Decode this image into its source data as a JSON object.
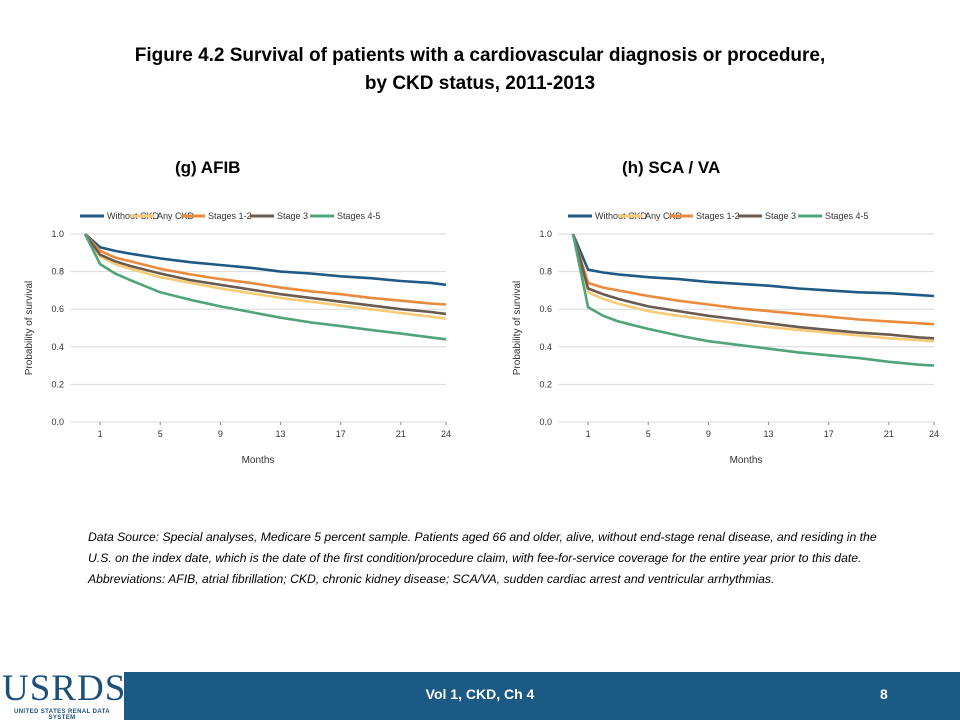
{
  "slide": {
    "title_line1": "Figure 4.2  Survival of patients with a cardiovascular diagnosis or procedure,",
    "title_line2": "by CKD status, 2011-2013",
    "footnote": "Data Source: Special analyses, Medicare 5 percent sample. Patients aged 66 and older, alive, without end-stage renal disease, and residing in the U.S. on the index date, which is the date of the first condition/procedure claim, with fee-for-service coverage for the entire year prior to this date. Abbreviations: AFIB, atrial fibrillation; CKD, chronic kidney disease; SCA/VA, sudden cardiac arrest and ventricular arrhythmias.",
    "footer_label": "Vol 1, CKD, Ch 4",
    "page_number": "8",
    "logo_text": "USRDS",
    "logo_subtext": "UNITED STATES RENAL DATA SYSTEM"
  },
  "colors": {
    "Without CKD": "#1f5a86",
    "Any CKD": "#f6cc76",
    "Stages 1-2": "#ea8a3c",
    "Stage 3": "#6b5a50",
    "Stages 4-5": "#4fa47a",
    "bar": "#1b5a84"
  },
  "chart_data": [
    {
      "type": "line",
      "panel_title": "(g) AFIB",
      "xlabel": "Months",
      "ylabel": "Probability of survival",
      "xlim": [
        -1,
        24
      ],
      "ylim": [
        0,
        1
      ],
      "xticks": [
        1,
        5,
        9,
        13,
        17,
        21,
        24
      ],
      "yticks": [
        "0.0",
        "0.2",
        "0.4",
        "0.6",
        "0.8",
        "1.0"
      ],
      "legend_position": "top",
      "x": [
        0,
        1,
        2,
        3,
        5,
        7,
        9,
        11,
        13,
        15,
        17,
        19,
        21,
        23,
        24
      ],
      "series": [
        {
          "name": "Without CKD",
          "values": [
            1.0,
            0.93,
            0.91,
            0.895,
            0.87,
            0.85,
            0.835,
            0.82,
            0.8,
            0.79,
            0.775,
            0.765,
            0.75,
            0.74,
            0.73
          ]
        },
        {
          "name": "Any CKD",
          "values": [
            1.0,
            0.88,
            0.84,
            0.815,
            0.77,
            0.74,
            0.71,
            0.685,
            0.66,
            0.64,
            0.62,
            0.6,
            0.58,
            0.56,
            0.55
          ]
        },
        {
          "name": "Stages 1-2",
          "values": [
            1.0,
            0.91,
            0.875,
            0.855,
            0.815,
            0.785,
            0.76,
            0.74,
            0.715,
            0.695,
            0.68,
            0.66,
            0.645,
            0.63,
            0.625
          ]
        },
        {
          "name": "Stage 3",
          "values": [
            1.0,
            0.89,
            0.855,
            0.83,
            0.79,
            0.755,
            0.73,
            0.705,
            0.68,
            0.66,
            0.64,
            0.62,
            0.6,
            0.585,
            0.575
          ]
        },
        {
          "name": "Stages 4-5",
          "values": [
            1.0,
            0.84,
            0.79,
            0.755,
            0.69,
            0.65,
            0.615,
            0.585,
            0.555,
            0.53,
            0.51,
            0.49,
            0.47,
            0.45,
            0.44
          ]
        }
      ]
    },
    {
      "type": "line",
      "panel_title": "(h) SCA / VA",
      "xlabel": "Months",
      "ylabel": "Probability of survival",
      "xlim": [
        -1,
        24
      ],
      "ylim": [
        0,
        1
      ],
      "xticks": [
        1,
        5,
        9,
        13,
        17,
        21,
        24
      ],
      "yticks": [
        "0.0",
        "0.2",
        "0.4",
        "0.6",
        "0.8",
        "1.0"
      ],
      "legend_position": "top",
      "x": [
        0,
        1,
        2,
        3,
        5,
        7,
        9,
        11,
        13,
        15,
        17,
        19,
        21,
        23,
        24
      ],
      "series": [
        {
          "name": "Without CKD",
          "values": [
            1.0,
            0.81,
            0.795,
            0.785,
            0.77,
            0.76,
            0.745,
            0.735,
            0.725,
            0.71,
            0.7,
            0.69,
            0.685,
            0.675,
            0.67
          ]
        },
        {
          "name": "Any CKD",
          "values": [
            1.0,
            0.69,
            0.655,
            0.63,
            0.59,
            0.565,
            0.545,
            0.525,
            0.505,
            0.49,
            0.475,
            0.46,
            0.445,
            0.435,
            0.43
          ]
        },
        {
          "name": "Stages 1-2",
          "values": [
            1.0,
            0.74,
            0.715,
            0.7,
            0.67,
            0.645,
            0.625,
            0.605,
            0.59,
            0.575,
            0.56,
            0.545,
            0.535,
            0.525,
            0.52
          ]
        },
        {
          "name": "Stage 3",
          "values": [
            1.0,
            0.71,
            0.68,
            0.655,
            0.615,
            0.59,
            0.565,
            0.545,
            0.525,
            0.505,
            0.49,
            0.475,
            0.465,
            0.45,
            0.445
          ]
        },
        {
          "name": "Stages 4-5",
          "values": [
            1.0,
            0.61,
            0.565,
            0.535,
            0.495,
            0.46,
            0.43,
            0.41,
            0.39,
            0.37,
            0.355,
            0.34,
            0.32,
            0.305,
            0.3
          ]
        }
      ]
    }
  ]
}
